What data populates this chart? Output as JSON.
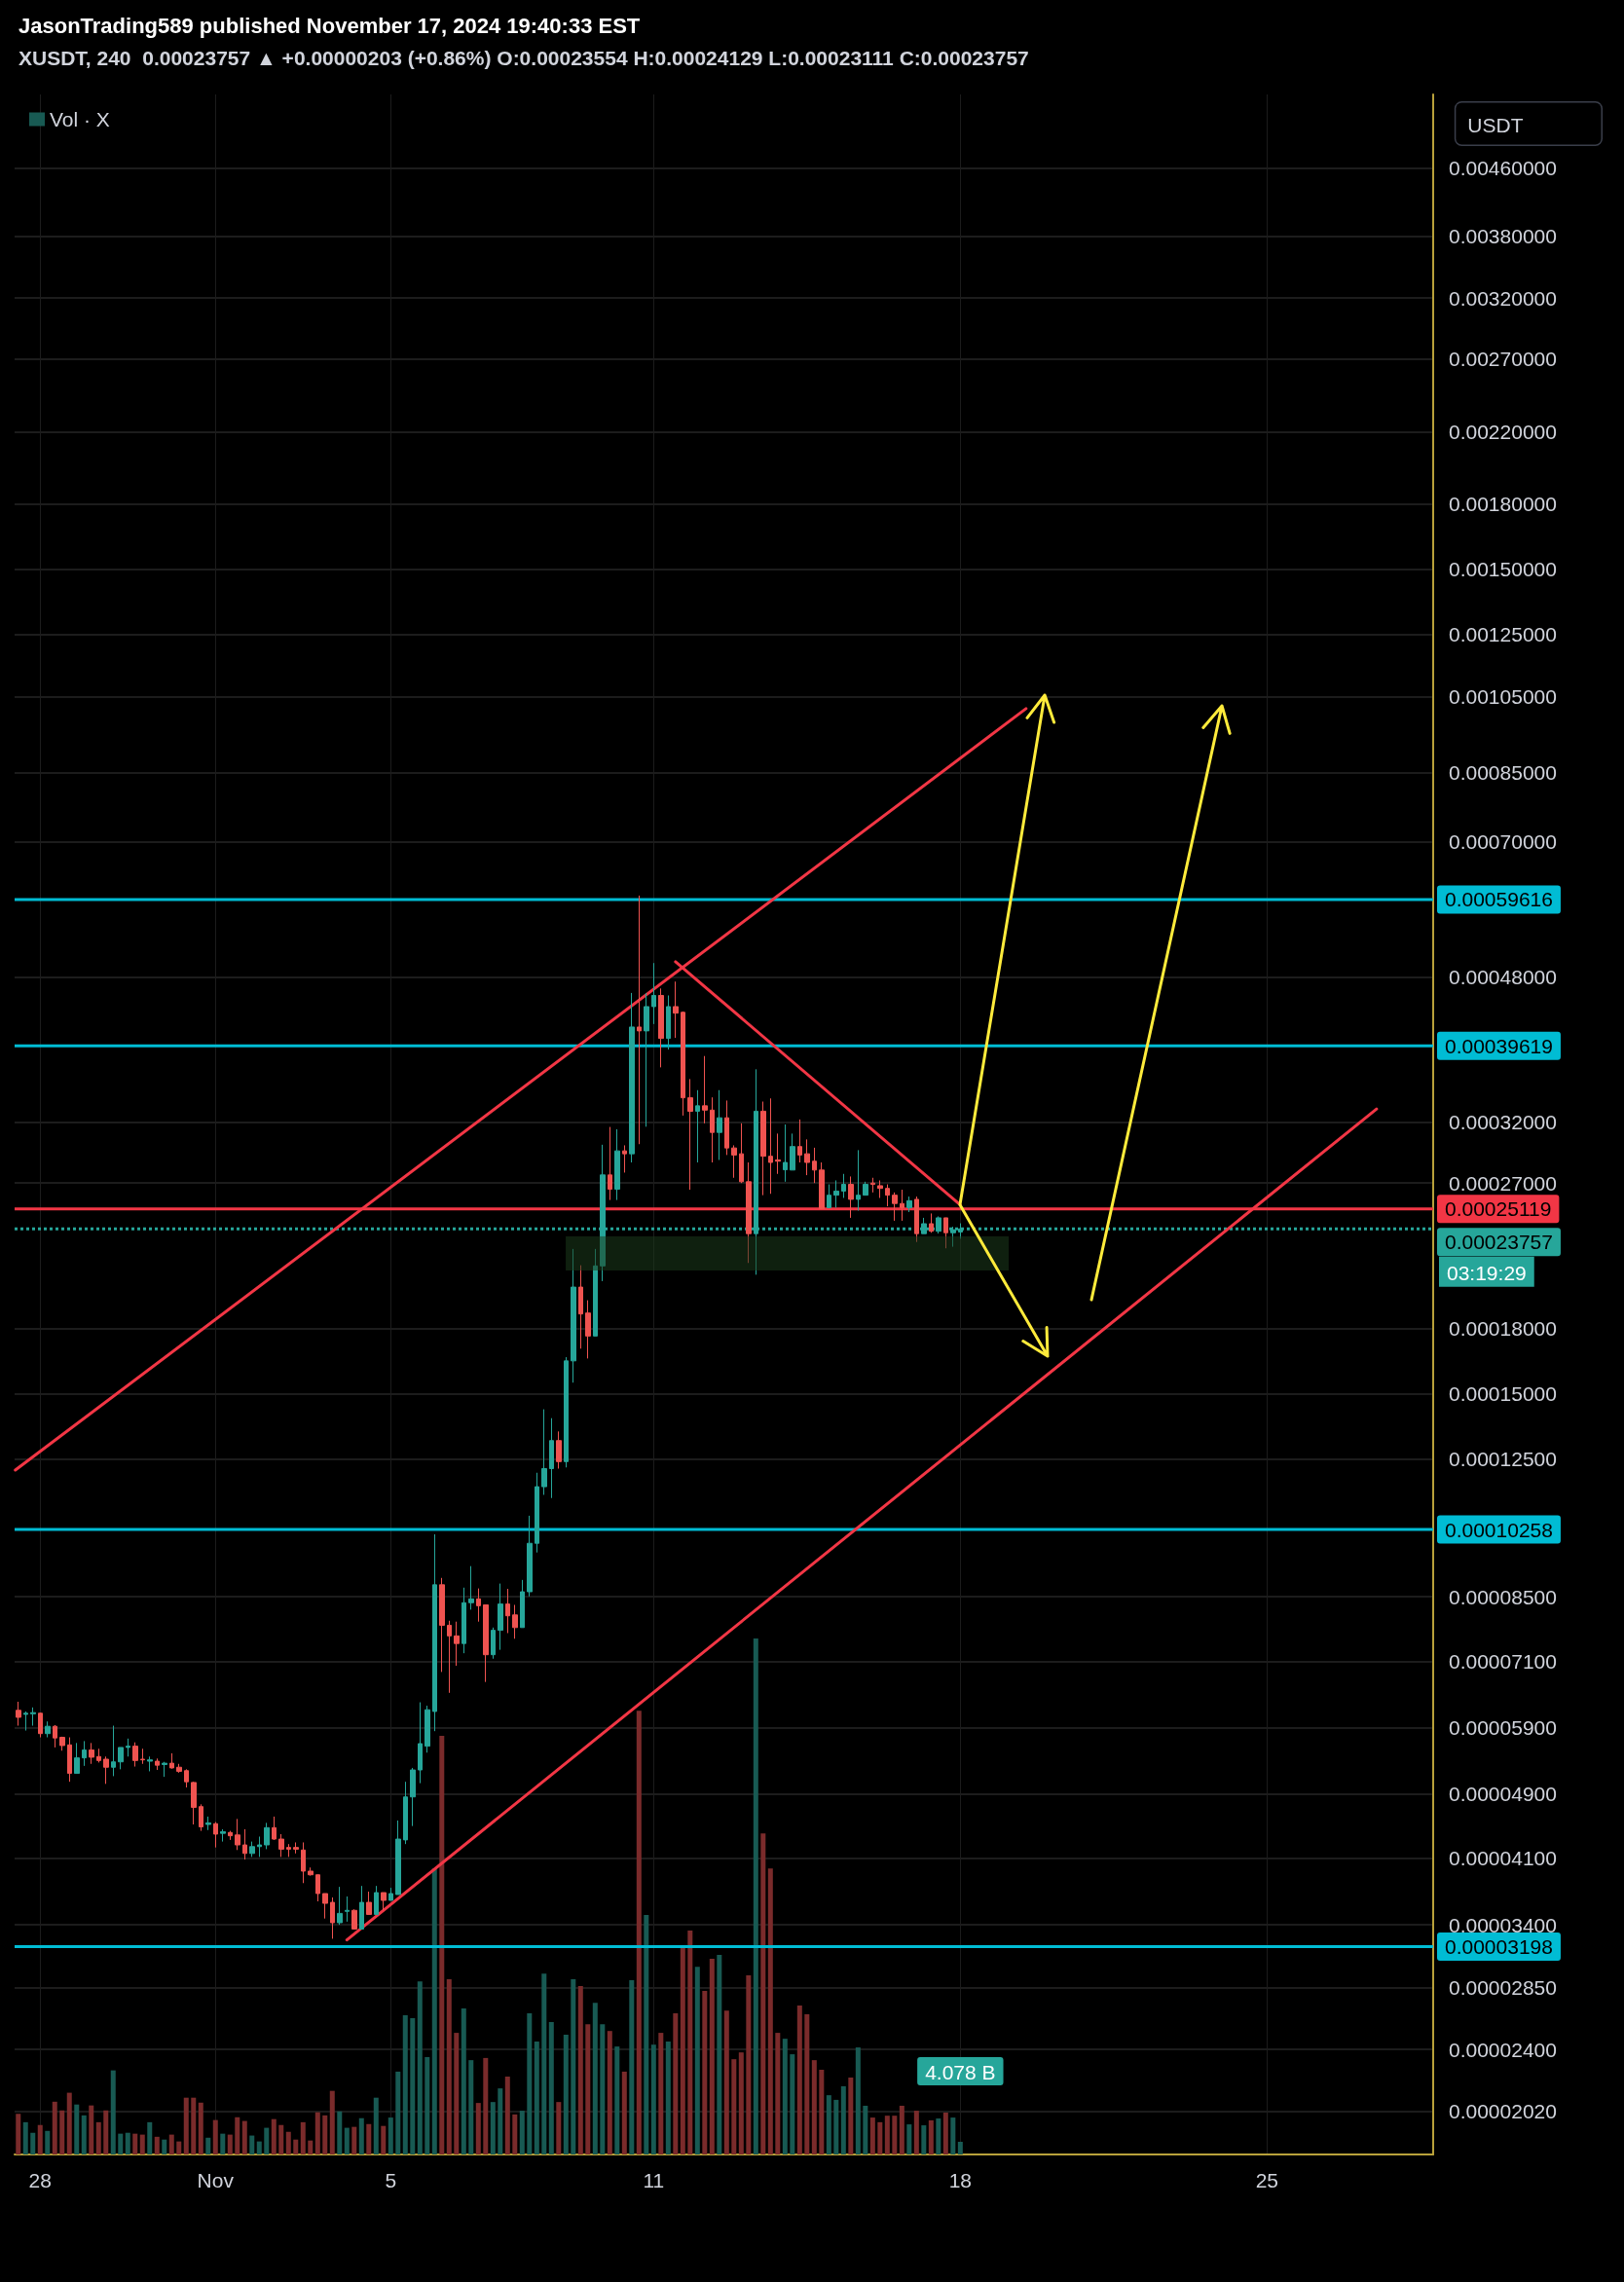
{
  "chart_data": {
    "type": "candlestick",
    "title": "JasonTrading589 published November 17, 2024 19:40:33 EST",
    "subtitle": "XUSDT, 240  0.00023757 ▲ +0.00000203 (+0.86%) O:0.00023554 H:0.00024129 L:0.00023111 C:0.00023757",
    "x": [
      "2024-10-27T12:00",
      "2024-10-27T16:00",
      "2024-10-27T20:00",
      "2024-10-28T00:00",
      "2024-10-28T04:00",
      "2024-10-28T08:00",
      "2024-10-28T12:00",
      "2024-10-28T16:00",
      "2024-10-28T20:00",
      "2024-10-29T00:00",
      "2024-10-29T04:00",
      "2024-10-29T08:00",
      "2024-10-29T12:00",
      "2024-10-29T16:00",
      "2024-10-29T20:00",
      "2024-10-30T00:00",
      "2024-10-30T04:00",
      "2024-10-30T08:00",
      "2024-10-30T12:00",
      "2024-10-30T16:00",
      "2024-10-30T20:00",
      "2024-10-31T00:00",
      "2024-10-31T04:00",
      "2024-10-31T08:00",
      "2024-10-31T12:00",
      "2024-10-31T16:00",
      "2024-10-31T20:00",
      "2024-11-01T00:00",
      "2024-11-01T04:00",
      "2024-11-01T08:00",
      "2024-11-01T12:00",
      "2024-11-01T16:00",
      "2024-11-01T20:00",
      "2024-11-02T00:00",
      "2024-11-02T04:00",
      "2024-11-02T08:00",
      "2024-11-02T12:00",
      "2024-11-02T16:00",
      "2024-11-02T20:00",
      "2024-11-03T00:00",
      "2024-11-03T04:00",
      "2024-11-03T08:00",
      "2024-11-03T12:00",
      "2024-11-03T16:00",
      "2024-11-03T20:00",
      "2024-11-04T00:00",
      "2024-11-04T04:00",
      "2024-11-04T08:00",
      "2024-11-04T12:00",
      "2024-11-04T16:00",
      "2024-11-04T20:00",
      "2024-11-05T00:00",
      "2024-11-05T04:00",
      "2024-11-05T08:00",
      "2024-11-05T12:00",
      "2024-11-05T16:00",
      "2024-11-05T20:00",
      "2024-11-06T00:00",
      "2024-11-06T04:00",
      "2024-11-06T08:00",
      "2024-11-06T12:00",
      "2024-11-06T16:00",
      "2024-11-06T20:00",
      "2024-11-07T00:00",
      "2024-11-07T04:00",
      "2024-11-07T08:00",
      "2024-11-07T12:00",
      "2024-11-07T16:00",
      "2024-11-07T20:00",
      "2024-11-08T00:00",
      "2024-11-08T04:00",
      "2024-11-08T08:00",
      "2024-11-08T12:00",
      "2024-11-08T16:00",
      "2024-11-08T20:00",
      "2024-11-09T00:00",
      "2024-11-09T04:00",
      "2024-11-09T08:00",
      "2024-11-09T12:00",
      "2024-11-09T16:00",
      "2024-11-09T20:00",
      "2024-11-10T00:00",
      "2024-11-10T04:00",
      "2024-11-10T08:00",
      "2024-11-10T12:00",
      "2024-11-10T16:00",
      "2024-11-10T20:00",
      "2024-11-11T00:00",
      "2024-11-11T04:00",
      "2024-11-11T08:00",
      "2024-11-11T12:00",
      "2024-11-11T16:00",
      "2024-11-11T20:00",
      "2024-11-12T00:00",
      "2024-11-12T04:00",
      "2024-11-12T08:00",
      "2024-11-12T12:00",
      "2024-11-12T16:00",
      "2024-11-12T20:00",
      "2024-11-13T00:00",
      "2024-11-13T04:00",
      "2024-11-13T08:00",
      "2024-11-13T12:00",
      "2024-11-13T16:00",
      "2024-11-13T20:00",
      "2024-11-14T00:00",
      "2024-11-14T04:00",
      "2024-11-14T08:00",
      "2024-11-14T12:00",
      "2024-11-14T16:00",
      "2024-11-14T20:00",
      "2024-11-15T00:00",
      "2024-11-15T04:00",
      "2024-11-15T08:00",
      "2024-11-15T12:00",
      "2024-11-15T16:00",
      "2024-11-15T20:00",
      "2024-11-16T00:00",
      "2024-11-16T04:00",
      "2024-11-16T08:00",
      "2024-11-16T12:00",
      "2024-11-16T16:00",
      "2024-11-16T20:00",
      "2024-11-17T00:00",
      "2024-11-17T04:00",
      "2024-11-17T08:00",
      "2024-11-17T12:00",
      "2024-11-17T16:00",
      "2024-11-17T20:00",
      "2024-11-18T00:00"
    ],
    "ohlc": [
      [
        6.19e-05,
        6.34e-05,
        5.93e-05,
        6.07e-05
      ],
      [
        6.12e-05,
        6.17e-05,
        5.85e-05,
        6.14e-05
      ],
      [
        6.13e-05,
        6.24e-05,
        5.93e-05,
        6.15e-05
      ],
      [
        6.14e-05,
        6.15e-05,
        5.74e-05,
        5.8e-05
      ],
      [
        5.8e-05,
        6e-05,
        5.74e-05,
        5.92e-05
      ],
      [
        5.92e-05,
        5.94e-05,
        5.58e-05,
        5.73e-05
      ],
      [
        5.74e-05,
        5.75e-05,
        5.53e-05,
        5.61e-05
      ],
      [
        5.62e-05,
        5.74e-05,
        5.07e-05,
        5.19e-05
      ],
      [
        5.19e-05,
        5.65e-05,
        5.19e-05,
        5.42e-05
      ],
      [
        5.42e-05,
        5.68e-05,
        5.3e-05,
        5.54e-05
      ],
      [
        5.54e-05,
        5.65e-05,
        5.33e-05,
        5.43e-05
      ],
      [
        5.44e-05,
        5.56e-05,
        5.35e-05,
        5.38e-05
      ],
      [
        5.4e-05,
        5.44e-05,
        5.04e-05,
        5.28e-05
      ],
      [
        5.28e-05,
        5.93e-05,
        5.15e-05,
        5.36e-05
      ],
      [
        5.36e-05,
        5.58e-05,
        5.25e-05,
        5.58e-05
      ],
      [
        5.58e-05,
        5.72e-05,
        5.44e-05,
        5.6e-05
      ],
      [
        5.6e-05,
        5.66e-05,
        5.29e-05,
        5.38e-05
      ],
      [
        5.4e-05,
        5.56e-05,
        5.33e-05,
        5.39e-05
      ],
      [
        5.37e-05,
        5.44e-05,
        5.22e-05,
        5.39e-05
      ],
      [
        5.37e-05,
        5.41e-05,
        5.24e-05,
        5.31e-05
      ],
      [
        5.32e-05,
        5.36e-05,
        5.14e-05,
        5.34e-05
      ],
      [
        5.34e-05,
        5.49e-05,
        5.26e-05,
        5.27e-05
      ],
      [
        5.28e-05,
        5.33e-05,
        5.2e-05,
        5.22e-05
      ],
      [
        5.23e-05,
        5.25e-05,
        4.99e-05,
        5.07e-05
      ],
      [
        5.06e-05,
        5.07e-05,
        4.5e-05,
        4.72e-05
      ],
      [
        4.73e-05,
        4.76e-05,
        4.42e-05,
        4.47e-05
      ],
      [
        4.5e-05,
        4.6e-05,
        4.43e-05,
        4.52e-05
      ],
      [
        4.51e-05,
        4.53e-05,
        4.22e-05,
        4.38e-05
      ],
      [
        4.39e-05,
        4.44e-05,
        4.29e-05,
        4.41e-05
      ],
      [
        4.4e-05,
        4.42e-05,
        4.31e-05,
        4.36e-05
      ],
      [
        4.37e-05,
        4.57e-05,
        4.19e-05,
        4.25e-05
      ],
      [
        4.25e-05,
        4.44e-05,
        4.08e-05,
        4.15e-05
      ],
      [
        4.15e-05,
        4.29e-05,
        4.11e-05,
        4.23e-05
      ],
      [
        4.23e-05,
        4.35e-05,
        4.11e-05,
        4.25e-05
      ],
      [
        4.25e-05,
        4.52e-05,
        4.2e-05,
        4.46e-05
      ],
      [
        4.46e-05,
        4.6e-05,
        4.31e-05,
        4.32e-05
      ],
      [
        4.32e-05,
        4.38e-05,
        4.11e-05,
        4.2e-05
      ],
      [
        4.22e-05,
        4.26e-05,
        4.11e-05,
        4.2e-05
      ],
      [
        4.22e-05,
        4.28e-05,
        4.15e-05,
        4.2e-05
      ],
      [
        4.19e-05,
        4.28e-05,
        3.82e-05,
        3.95e-05
      ],
      [
        3.95e-05,
        3.99e-05,
        3.9e-05,
        3.91e-05
      ],
      [
        3.91e-05,
        3.91e-05,
        3.63e-05,
        3.71e-05
      ],
      [
        3.71e-05,
        3.71e-05,
        3.46e-05,
        3.61e-05
      ],
      [
        3.62e-05,
        3.67e-05,
        3.27e-05,
        3.42e-05
      ],
      [
        3.42e-05,
        3.78e-05,
        3.4e-05,
        3.51e-05
      ],
      [
        3.53e-05,
        3.68e-05,
        3.43e-05,
        3.54e-05
      ],
      [
        3.54e-05,
        3.55e-05,
        3.36e-05,
        3.36e-05
      ],
      [
        3.36e-05,
        3.79e-05,
        3.36e-05,
        3.62e-05
      ],
      [
        3.62e-05,
        3.73e-05,
        3.5e-05,
        3.5e-05
      ],
      [
        3.5e-05,
        3.79e-05,
        3.5e-05,
        3.72e-05
      ],
      [
        3.72e-05,
        3.72e-05,
        3.54e-05,
        3.64e-05
      ],
      [
        3.64e-05,
        3.77e-05,
        3.64e-05,
        3.71e-05
      ],
      [
        3.7e-05,
        4.55e-05,
        3.7e-05,
        4.32e-05
      ],
      [
        4.31e-05,
        5.07e-05,
        4.26e-05,
        4.86e-05
      ],
      [
        4.86e-05,
        5.27e-05,
        4.48e-05,
        5.24e-05
      ],
      [
        5.24e-05,
        6.33e-05,
        5.05e-05,
        5.64e-05
      ],
      [
        5.6e-05,
        6.27e-05,
        5.5e-05,
        6.2e-05
      ],
      [
        6.17e-05,
        0.0001012,
        5.84e-05,
        8.79e-05
      ],
      [
        8.79e-05,
        8.96e-05,
        6.89e-05,
        7.85e-05
      ],
      [
        7.85e-05,
        7.95e-05,
        6.5e-05,
        7.62e-05
      ],
      [
        7.62e-05,
        7.93e-05,
        7.01e-05,
        7.46e-05
      ],
      [
        7.46e-05,
        8.72e-05,
        7.26e-05,
        8.36e-05
      ],
      [
        8.36e-05,
        9.26e-05,
        8.2e-05,
        8.45e-05
      ],
      [
        8.45e-05,
        8.7e-05,
        7.93e-05,
        8.29e-05
      ],
      [
        8.31e-05,
        8.31e-05,
        6.7e-05,
        7.23e-05
      ],
      [
        7.23e-05,
        7.8e-05,
        7.15e-05,
        7.74e-05
      ],
      [
        7.74e-05,
        8.82e-05,
        7.33e-05,
        8.33e-05
      ],
      [
        8.33e-05,
        8.69e-05,
        7.68e-05,
        8.06e-05
      ],
      [
        8.08e-05,
        8.31e-05,
        7.56e-05,
        7.8e-05
      ],
      [
        7.8e-05,
        8.91e-05,
        7.8e-05,
        8.62e-05
      ],
      [
        8.62e-05,
        0.0001066,
        8.51e-05,
        9.87e-05
      ],
      [
        9.87e-05,
        0.0001202,
        9.62e-05,
        0.0001156
      ],
      [
        0.0001156,
        0.0001435,
        0.000113,
        0.0001216
      ],
      [
        0.0001216,
        0.00014,
        0.000112,
        0.0001315
      ],
      [
        0.0001315,
        0.0001349,
        0.0001216,
        0.000124
      ],
      [
        0.000124,
        0.000166,
        0.000122,
        0.0001643
      ],
      [
        0.0001643,
        0.0002246,
        0.0001546,
        0.0002019
      ],
      [
        0.0002019,
        0.0002146,
        0.00017,
        0.0001873
      ],
      [
        0.0001878,
        0.0001946,
        0.0001654,
        0.0001761
      ],
      [
        0.0001761,
        0.0002246,
        0.0001761,
        0.0002142
      ],
      [
        0.0002142,
        0.0003005,
        0.0002053,
        0.0002762
      ],
      [
        0.0002762,
        0.0003158,
        0.0002575,
        0.0002654
      ],
      [
        0.0002654,
        0.0003138,
        0.0002575,
        0.0002954
      ],
      [
        0.0002954,
        0.0003,
        0.000278,
        0.000293
      ],
      [
        0.000293,
        0.0004592,
        0.000286,
        0.0004175
      ],
      [
        0.0004175,
        0.0006027,
        0.000301,
        0.000413
      ],
      [
        0.000413,
        0.000459,
        0.000316,
        0.000442
      ],
      [
        0.000442,
        0.0004992,
        0.000421,
        0.000456
      ],
      [
        0.000456,
        0.000465,
        0.000373,
        0.0004044
      ],
      [
        0.0004044,
        0.000456,
        0.000392,
        0.000442
      ],
      [
        0.000442,
        0.000474,
        0.000405,
        0.000434
      ],
      [
        0.000435,
        0.000436,
        0.000326,
        0.0003426
      ],
      [
        0.0003426,
        0.000361,
        0.000265,
        0.0003299
      ],
      [
        0.00033,
        0.00035,
        0.000286,
        0.000335
      ],
      [
        0.000335,
        0.000385,
        0.000319,
        0.000331
      ],
      [
        0.000331,
        0.000343,
        0.000286,
        0.000311
      ],
      [
        0.000311,
        0.00035,
        0.000288,
        0.000324
      ],
      [
        0.000324,
        0.00034,
        0.000292,
        0.0002978
      ],
      [
        0.0002978,
        0.0003,
        0.000274,
        0.000292
      ],
      [
        0.000293,
        0.000319,
        0.00027,
        0.000271
      ],
      [
        0.000271,
        0.000286,
        0.000216,
        0.0002344
      ],
      [
        0.0002344,
        0.000371,
        0.000209,
        0.00033
      ],
      [
        0.00033,
        0.000339,
        0.000261,
        0.000291
      ],
      [
        0.000291,
        0.000342,
        0.000262,
        0.000286
      ],
      [
        0.000288,
        0.00031,
        0.000277,
        0.000287
      ],
      [
        0.0002802,
        0.000318,
        0.000271,
        0.000286
      ],
      [
        0.00028,
        0.00031,
        0.00028,
        0.000299
      ],
      [
        0.000299,
        0.0003225,
        0.000286,
        0.000292
      ],
      [
        0.000293,
        0.000305,
        0.000276,
        0.000286
      ],
      [
        0.000287,
        0.000298,
        0.00027,
        0.00028
      ],
      [
        0.00028,
        0.000286,
        0.000251,
        0.0002513
      ],
      [
        0.000252,
        0.000269,
        0.000252,
        0.000261
      ],
      [
        0.000261,
        0.000272,
        0.000252,
        0.000264
      ],
      [
        0.000264,
        0.000277,
        0.000259,
        0.000269
      ],
      [
        0.000269,
        0.000275,
        0.000245,
        0.000258
      ],
      [
        0.000258,
        0.000296,
        0.00025,
        0.000261
      ],
      [
        0.000261,
        0.000271,
        0.000261,
        0.000269
      ],
      [
        0.00027,
        0.000274,
        0.000263,
        0.000269
      ],
      [
        0.000268,
        0.000272,
        0.000259,
        0.000266
      ],
      [
        0.000266,
        0.000269,
        0.000253,
        0.000261
      ],
      [
        0.000261,
        0.000263,
        0.000243,
        0.000255
      ],
      [
        0.000255,
        0.000265,
        0.000243,
        0.000252
      ],
      [
        0.000252,
        0.00026,
        0.000249,
        0.000257
      ],
      [
        0.000258,
        0.00026,
        0.000229,
        0.0002344
      ],
      [
        0.0002344,
        0.000245,
        0.0002344,
        0.000241
      ],
      [
        0.000241,
        0.000248,
        0.000235,
        0.000236
      ],
      [
        0.000236,
        0.000246,
        0.0002345,
        0.000245
      ],
      [
        0.000245,
        0.000245,
        0.000225,
        0.000235
      ],
      [
        0.000235,
        0.000239,
        0.000226,
        0.000237
      ],
      [
        0.00023554,
        0.00024129,
        0.00023111,
        0.00023757
      ]
    ],
    "colors": [
      "#ef5350",
      "#26a69a",
      "#26a69a",
      "#ef5350",
      "#26a69a",
      "#ef5350",
      "#ef5350",
      "#ef5350",
      "#26a69a",
      "#26a69a",
      "#ef5350",
      "#ef5350",
      "#ef5350",
      "#26a69a",
      "#26a69a",
      "#26a69a",
      "#ef5350",
      "#ef5350",
      "#26a69a",
      "#ef5350",
      "#26a69a",
      "#ef5350",
      "#ef5350",
      "#ef5350",
      "#ef5350",
      "#ef5350",
      "#26a69a",
      "#ef5350",
      "#26a69a",
      "#ef5350",
      "#ef5350",
      "#ef5350",
      "#26a69a",
      "#26a69a",
      "#26a69a",
      "#ef5350",
      "#ef5350",
      "#ef5350",
      "#ef5350",
      "#ef5350",
      "#ef5350",
      "#ef5350",
      "#ef5350",
      "#ef5350",
      "#26a69a",
      "#26a69a",
      "#ef5350",
      "#26a69a",
      "#ef5350",
      "#26a69a",
      "#ef5350",
      "#26a69a",
      "#26a69a",
      "#26a69a",
      "#26a69a",
      "#26a69a",
      "#26a69a",
      "#26a69a",
      "#ef5350",
      "#ef5350",
      "#ef5350",
      "#26a69a",
      "#26a69a",
      "#ef5350",
      "#ef5350",
      "#26a69a",
      "#26a69a",
      "#ef5350",
      "#ef5350",
      "#26a69a",
      "#26a69a",
      "#26a69a",
      "#26a69a",
      "#26a69a",
      "#ef5350",
      "#26a69a",
      "#26a69a",
      "#ef5350",
      "#ef5350",
      "#26a69a",
      "#26a69a",
      "#ef5350",
      "#26a69a",
      "#ef5350",
      "#26a69a",
      "#ef5350",
      "#26a69a",
      "#26a69a",
      "#ef5350",
      "#26a69a",
      "#ef5350",
      "#ef5350",
      "#ef5350",
      "#26a69a",
      "#ef5350",
      "#ef5350",
      "#26a69a",
      "#ef5350",
      "#ef5350",
      "#ef5350",
      "#ef5350",
      "#26a69a",
      "#ef5350",
      "#ef5350",
      "#ef5350",
      "#26a69a",
      "#26a69a",
      "#ef5350",
      "#ef5350",
      "#ef5350",
      "#ef5350",
      "#26a69a",
      "#26a69a",
      "#26a69a",
      "#ef5350",
      "#26a69a",
      "#26a69a",
      "#ef5350",
      "#ef5350",
      "#ef5350",
      "#ef5350",
      "#ef5350",
      "#26a69a",
      "#ef5350",
      "#26a69a",
      "#ef5350",
      "#26a69a",
      "#ef5350",
      "#26a69a",
      "#26a69a"
    ],
    "series": [
      {
        "type": "bar",
        "name": "Vol · X",
        "axis": "y2",
        "values": [
          13.1,
          10.4,
          7.0,
          9.5,
          7.6,
          17.0,
          14.2,
          19.9,
          16.1,
          12.6,
          15.8,
          10.4,
          14.2,
          27.1,
          6.7,
          7.0,
          6.7,
          6.4,
          10.4,
          5.7,
          4.8,
          6.4,
          4.2,
          18.3,
          18.3,
          16.7,
          5.4,
          11.1,
          6.7,
          6.4,
          12.0,
          10.8,
          6.1,
          4.2,
          8.6,
          11.4,
          9.5,
          7.3,
          4.8,
          10.4,
          4.5,
          13.6,
          12.6,
          20.5,
          13.9,
          8.6,
          8.9,
          11.7,
          9.8,
          18.3,
          9.2,
          11.9,
          26.7,
          44.9,
          43.9,
          55.8,
          31.4,
          92.2,
          134.9,
          56.5,
          39.2,
          47.1,
          30.4,
          16.6,
          31.1,
          16.9,
          21.3,
          25.1,
          12.9,
          14.1,
          45.5,
          36.4,
          58.3,
          42.7,
          16.9,
          38.6,
          56.5,
          54.3,
          42.0,
          48.9,
          42.0,
          39.8,
          34.8,
          26.7,
          56.2,
          143.0,
          77.2,
          35.4,
          39.2,
          36.4,
          45.5,
          67.4,
          72.2,
          60.5,
          52.7,
          63.1,
          64.3,
          46.4,
          30.7,
          32.9,
          57.7,
          166.3,
          103.5,
          92.2,
          39.2,
          37.3,
          32.3,
          48.0,
          45.2,
          30.4,
          27.3,
          19.1,
          17.6,
          22.0,
          24.8,
          34.5,
          15.7,
          11.9,
          10.4,
          12.5,
          12.5,
          15.7,
          9.7,
          14.1,
          9.4,
          11.0,
          11.6,
          13.5,
          11.9,
          4.078
        ],
        "value_labels": [
          null,
          null,
          null,
          null,
          null,
          null,
          null,
          null,
          null,
          null,
          null,
          null,
          null,
          null,
          null,
          null,
          null,
          null,
          null,
          null,
          null,
          null,
          null,
          null,
          null,
          null,
          null,
          null,
          null,
          null,
          null,
          null,
          null,
          null,
          null,
          null,
          null,
          null,
          null,
          null,
          null,
          null,
          null,
          null,
          null,
          null,
          null,
          null,
          null,
          null,
          null,
          null,
          null,
          null,
          null,
          null,
          null,
          null,
          null,
          null,
          null,
          null,
          null,
          null,
          null,
          null,
          null,
          null,
          null,
          null,
          null,
          null,
          null,
          null,
          null,
          null,
          null,
          null,
          null,
          null,
          null,
          null,
          null,
          null,
          null,
          null,
          null,
          null,
          null,
          null,
          null,
          null,
          null,
          null,
          null,
          null,
          null,
          null,
          null,
          null,
          null,
          null,
          null,
          null,
          null,
          null,
          null,
          null,
          null,
          null,
          null,
          null,
          null,
          null,
          null,
          null,
          null,
          null,
          null,
          null,
          null,
          null,
          null,
          null,
          null,
          null,
          null,
          null,
          null,
          "4.078 B"
        ],
        "colors": [
          "#7a2b2b",
          "#185a53",
          "#185a53",
          "#7a2b2b",
          "#185a53",
          "#7a2b2b",
          "#7a2b2b",
          "#7a2b2b",
          "#185a53",
          "#185a53",
          "#7a2b2b",
          "#7a2b2b",
          "#7a2b2b",
          "#185a53",
          "#185a53",
          "#185a53",
          "#7a2b2b",
          "#7a2b2b",
          "#185a53",
          "#7a2b2b",
          "#185a53",
          "#7a2b2b",
          "#7a2b2b",
          "#7a2b2b",
          "#7a2b2b",
          "#7a2b2b",
          "#185a53",
          "#7a2b2b",
          "#185a53",
          "#7a2b2b",
          "#7a2b2b",
          "#7a2b2b",
          "#185a53",
          "#185a53",
          "#185a53",
          "#7a2b2b",
          "#7a2b2b",
          "#7a2b2b",
          "#7a2b2b",
          "#7a2b2b",
          "#7a2b2b",
          "#7a2b2b",
          "#7a2b2b",
          "#7a2b2b",
          "#185a53",
          "#185a53",
          "#7a2b2b",
          "#185a53",
          "#7a2b2b",
          "#185a53",
          "#7a2b2b",
          "#185a53",
          "#185a53",
          "#185a53",
          "#185a53",
          "#185a53",
          "#185a53",
          "#185a53",
          "#7a2b2b",
          "#7a2b2b",
          "#7a2b2b",
          "#185a53",
          "#185a53",
          "#7a2b2b",
          "#7a2b2b",
          "#185a53",
          "#185a53",
          "#7a2b2b",
          "#7a2b2b",
          "#185a53",
          "#185a53",
          "#185a53",
          "#185a53",
          "#185a53",
          "#7a2b2b",
          "#185a53",
          "#185a53",
          "#7a2b2b",
          "#7a2b2b",
          "#185a53",
          "#185a53",
          "#7a2b2b",
          "#185a53",
          "#7a2b2b",
          "#185a53",
          "#7a2b2b",
          "#185a53",
          "#185a53",
          "#7a2b2b",
          "#185a53",
          "#7a2b2b",
          "#7a2b2b",
          "#7a2b2b",
          "#185a53",
          "#7a2b2b",
          "#7a2b2b",
          "#185a53",
          "#7a2b2b",
          "#7a2b2b",
          "#7a2b2b",
          "#7a2b2b",
          "#185a53",
          "#7a2b2b",
          "#7a2b2b",
          "#7a2b2b",
          "#185a53",
          "#185a53",
          "#7a2b2b",
          "#7a2b2b",
          "#7a2b2b",
          "#7a2b2b",
          "#185a53",
          "#185a53",
          "#185a53",
          "#7a2b2b",
          "#185a53",
          "#185a53",
          "#7a2b2b",
          "#7a2b2b",
          "#7a2b2b",
          "#7a2b2b",
          "#7a2b2b",
          "#185a53",
          "#7a2b2b",
          "#185a53",
          "#7a2b2b",
          "#185a53",
          "#7a2b2b",
          "#185a53",
          "#185a53"
        ]
      },
      {
        "type": "line",
        "color": "#f23645",
        "x": [
          "2024-10-27T10:24",
          "2024-11-19T12:00"
        ],
        "values": [
          0.0001211,
          0.001016
        ]
      },
      {
        "type": "line",
        "color": "#f23645",
        "x": [
          "2024-11-04T00:00",
          "2024-11-27T12:00"
        ],
        "values": [
          3.26e-05,
          0.000332
        ]
      },
      {
        "type": "line",
        "color": "#f23645",
        "x": [
          "2024-11-11T12:00",
          "2024-11-18T00:00"
        ],
        "values": [
          0.000501,
          0.000254
        ]
      }
    ],
    "marker": "none",
    "xlim": [
      "2024-10-27T10:00",
      "2024-11-28T19:00"
    ],
    "xticks": [
      {
        "value": "2024-10-28",
        "label": "28"
      },
      {
        "value": "2024-11-01",
        "label": "Nov"
      },
      {
        "value": "2024-11-05",
        "label": "5"
      },
      {
        "value": "2024-11-11",
        "label": "11"
      },
      {
        "value": "2024-11-18",
        "label": "18"
      },
      {
        "value": "2024-11-25",
        "label": "25"
      }
    ],
    "log": "y",
    "ylim": [
      1.79e-05,
      0.00565
    ],
    "yticks": [
      {
        "value": 0.0046,
        "label": "0.00460000"
      },
      {
        "value": 0.0038,
        "label": "0.00380000"
      },
      {
        "value": 0.0032,
        "label": "0.00320000"
      },
      {
        "value": 0.0027,
        "label": "0.00270000"
      },
      {
        "value": 0.0022,
        "label": "0.00220000"
      },
      {
        "value": 0.0018,
        "label": "0.00180000"
      },
      {
        "value": 0.0015,
        "label": "0.00150000"
      },
      {
        "value": 0.00125,
        "label": "0.00125000"
      },
      {
        "value": 0.00105,
        "label": "0.00105000"
      },
      {
        "value": 0.00085,
        "label": "0.00085000"
      },
      {
        "value": 0.0007,
        "label": "0.00070000"
      },
      {
        "value": 0.00048,
        "label": "0.00048000"
      },
      {
        "value": 0.00032,
        "label": "0.00032000"
      },
      {
        "value": 0.00027,
        "label": "0.00027000"
      },
      {
        "value": 0.00018,
        "label": "0.00018000"
      },
      {
        "value": 0.00015,
        "label": "0.00015000"
      },
      {
        "value": 0.000125,
        "label": "0.00012500"
      },
      {
        "value": 8.5e-05,
        "label": "0.00008500"
      },
      {
        "value": 7.1e-05,
        "label": "0.00007100"
      },
      {
        "value": 5.9e-05,
        "label": "0.00005900"
      },
      {
        "value": 4.9e-05,
        "label": "0.00004900"
      },
      {
        "value": 4.1e-05,
        "label": "0.00004100"
      },
      {
        "value": 3.4e-05,
        "label": "0.00003400"
      },
      {
        "value": 2.85e-05,
        "label": "0.00002850"
      },
      {
        "value": 2.4e-05,
        "label": "0.00002400"
      },
      {
        "value": 2.02e-05,
        "label": "0.00002020"
      }
    ],
    "y2lim": [
      0,
      664
    ],
    "grid": true,
    "legend": "top left",
    "ref_lines": [
      {
        "axis": "y",
        "value": 0.00059616,
        "label": "0.00059616",
        "color": "#00bcd4"
      },
      {
        "axis": "y",
        "value": 0.00039619,
        "label": "0.00039619",
        "color": "#00bcd4"
      },
      {
        "axis": "y",
        "value": 0.00010258,
        "label": "0.00010258",
        "color": "#00bcd4"
      },
      {
        "axis": "y",
        "value": 3.198e-05,
        "label": "0.00003198",
        "color": "#00bcd4"
      },
      {
        "axis": "y",
        "value": 0.00025119,
        "label": "0.00025119",
        "color": "#f23645"
      },
      {
        "axis": "y",
        "value": 0.00023757,
        "label": "0.00023757",
        "color": "#26a69a",
        "line_style": "dotted"
      }
    ],
    "annotations": [
      "USDT",
      "03:19:29"
    ]
  }
}
